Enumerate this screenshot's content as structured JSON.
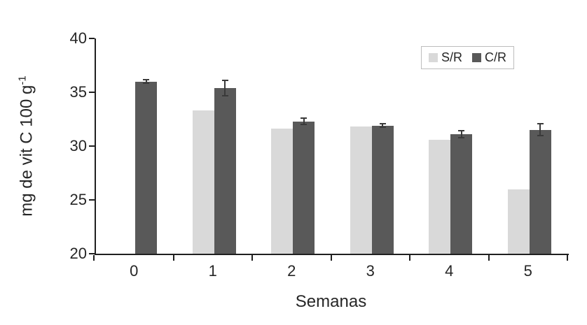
{
  "chart_data": {
    "type": "bar",
    "title": "",
    "xlabel": "Semanas",
    "ylabel": "mg de vit C 100 g⁻¹",
    "ylabel_main": "mg de vit C 100 g",
    "ylabel_sup": "-1",
    "categories": [
      "0",
      "1",
      "2",
      "3",
      "4",
      "5"
    ],
    "series": [
      {
        "name": "S/R",
        "color": "#d9d9d9",
        "values": [
          null,
          33.3,
          31.6,
          31.8,
          30.6,
          26.0
        ],
        "errors": [
          0,
          0,
          0,
          0,
          0,
          0
        ]
      },
      {
        "name": "C/R",
        "color": "#595959",
        "values": [
          36.0,
          35.4,
          32.3,
          31.9,
          31.1,
          31.5
        ],
        "errors": [
          0.15,
          0.7,
          0.3,
          0.15,
          0.35,
          0.55
        ]
      }
    ],
    "ylim": [
      20,
      40
    ],
    "yticks": [
      20,
      25,
      30,
      35,
      40
    ],
    "grid": false,
    "legend_position": "top-right",
    "error_bar_color": "#3a3a3a",
    "axis_color": "#1f1f1f"
  }
}
